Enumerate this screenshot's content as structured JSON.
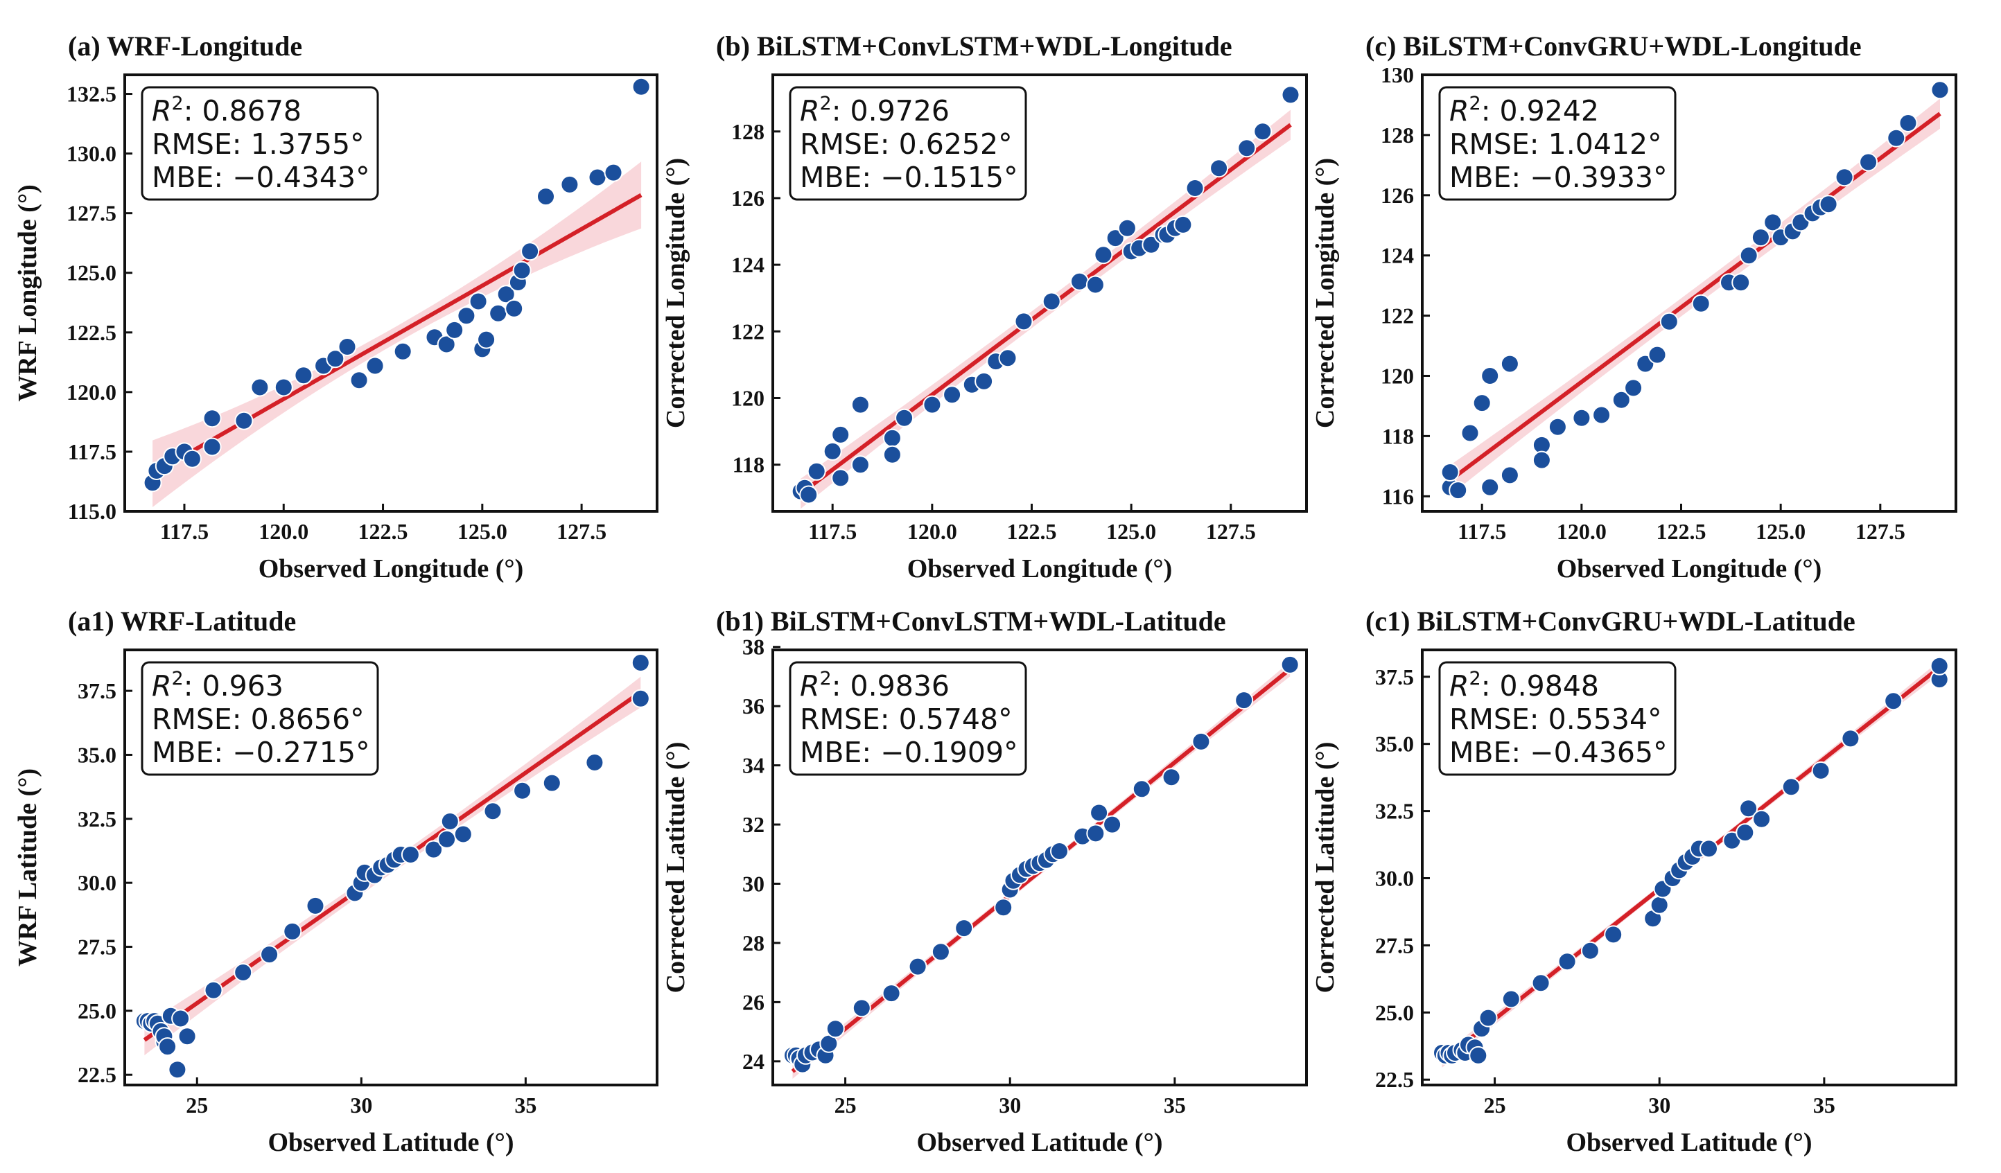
{
  "figure": {
    "colors": {
      "point": "#1b4f9c",
      "point_edge": "#ffffff",
      "fit_line": "#d42027",
      "ci_band": "#f4b6bd",
      "axes": "#111111"
    }
  },
  "chart_data": [
    {
      "id": "a",
      "type": "scatter",
      "title": "(a) WRF-Longitude",
      "xlabel": "Observed Longitude (°)",
      "ylabel": "WRF Longitude (°)",
      "xlim": [
        116.0,
        129.4
      ],
      "ylim": [
        115.0,
        133.3
      ],
      "xticks": [
        117.5,
        120.0,
        122.5,
        125.0,
        127.5
      ],
      "xtick_labels": [
        "117.5",
        "120.0",
        "122.5",
        "125.0",
        "127.5"
      ],
      "yticks": [
        115.0,
        117.5,
        120.0,
        122.5,
        125.0,
        127.5,
        130.0,
        132.5
      ],
      "ytick_labels": [
        "115.0",
        "117.5",
        "120.0",
        "122.5",
        "125.0",
        "127.5",
        "130.0",
        "132.5"
      ],
      "stats": {
        "r2_label": ": 0.8678",
        "rmse": "RMSE: 1.3755°",
        "mbe": "MBE: −0.4343°"
      },
      "fit": {
        "slope": 0.95,
        "intercept": 5.71,
        "ci_halfwidth": [
          0.35,
          1.4
        ]
      },
      "points": [
        [
          116.7,
          116.2
        ],
        [
          116.8,
          116.7
        ],
        [
          117.0,
          116.9
        ],
        [
          117.2,
          117.3
        ],
        [
          117.5,
          117.5
        ],
        [
          117.7,
          117.2
        ],
        [
          118.2,
          118.9
        ],
        [
          118.2,
          117.7
        ],
        [
          119.0,
          118.8
        ],
        [
          119.4,
          120.2
        ],
        [
          120.0,
          120.2
        ],
        [
          120.5,
          120.7
        ],
        [
          121.0,
          121.1
        ],
        [
          121.3,
          121.4
        ],
        [
          121.6,
          121.9
        ],
        [
          121.9,
          120.5
        ],
        [
          122.3,
          121.1
        ],
        [
          123.0,
          121.7
        ],
        [
          123.8,
          122.3
        ],
        [
          124.1,
          122.0
        ],
        [
          124.3,
          122.6
        ],
        [
          124.6,
          123.2
        ],
        [
          124.9,
          123.8
        ],
        [
          125.0,
          121.8
        ],
        [
          125.1,
          122.2
        ],
        [
          125.4,
          123.3
        ],
        [
          125.6,
          124.1
        ],
        [
          125.8,
          123.5
        ],
        [
          125.9,
          124.6
        ],
        [
          126.0,
          125.1
        ],
        [
          126.2,
          125.9
        ],
        [
          126.6,
          128.2
        ],
        [
          127.2,
          128.7
        ],
        [
          127.9,
          129.0
        ],
        [
          128.3,
          129.2
        ],
        [
          129.0,
          132.8
        ]
      ]
    },
    {
      "id": "b",
      "type": "scatter",
      "title": "(b) BiLSTM+ConvLSTM+WDL-Longitude",
      "xlabel": "Observed Longitude (°)",
      "ylabel": "Corrected Longitude (°)",
      "xlim": [
        116.0,
        129.4
      ],
      "ylim": [
        116.6,
        129.7
      ],
      "xticks": [
        117.5,
        120.0,
        122.5,
        125.0,
        127.5
      ],
      "xtick_labels": [
        "117.5",
        "120.0",
        "122.5",
        "125.0",
        "127.5"
      ],
      "yticks": [
        118,
        120,
        122,
        124,
        126,
        128
      ],
      "ytick_labels": [
        "118",
        "120",
        "122",
        "124",
        "126",
        "128"
      ],
      "stats": {
        "r2_label": ": 0.9726",
        "rmse": "RMSE: 0.6252°",
        "mbe": "MBE: −0.1515°"
      },
      "fit": {
        "slope": 0.9,
        "intercept": 12.1,
        "ci_halfwidth": [
          0.25,
          0.45
        ]
      },
      "points": [
        [
          116.7,
          117.2
        ],
        [
          116.8,
          117.3
        ],
        [
          116.9,
          117.1
        ],
        [
          117.1,
          117.8
        ],
        [
          117.5,
          118.4
        ],
        [
          117.7,
          118.9
        ],
        [
          117.7,
          117.6
        ],
        [
          118.2,
          119.8
        ],
        [
          118.2,
          118.0
        ],
        [
          119.0,
          118.8
        ],
        [
          119.0,
          118.3
        ],
        [
          119.3,
          119.4
        ],
        [
          120.0,
          119.8
        ],
        [
          120.5,
          120.1
        ],
        [
          121.0,
          120.4
        ],
        [
          121.3,
          120.5
        ],
        [
          121.6,
          121.1
        ],
        [
          121.9,
          121.2
        ],
        [
          122.3,
          122.3
        ],
        [
          123.0,
          122.9
        ],
        [
          123.7,
          123.5
        ],
        [
          124.1,
          123.4
        ],
        [
          124.3,
          124.3
        ],
        [
          124.6,
          124.8
        ],
        [
          124.9,
          125.1
        ],
        [
          125.0,
          124.4
        ],
        [
          125.2,
          124.5
        ],
        [
          125.5,
          124.6
        ],
        [
          125.8,
          124.9
        ],
        [
          125.9,
          124.9
        ],
        [
          126.1,
          125.1
        ],
        [
          126.3,
          125.2
        ],
        [
          126.6,
          126.3
        ],
        [
          127.2,
          126.9
        ],
        [
          127.9,
          127.5
        ],
        [
          128.3,
          128.0
        ],
        [
          129.0,
          129.1
        ]
      ]
    },
    {
      "id": "c",
      "type": "scatter",
      "title": "(c) BiLSTM+ConvGRU+WDL-Longitude",
      "xlabel": "Observed Longitude (°)",
      "ylabel": "Corrected Longitude (°)",
      "xlim": [
        116.0,
        129.4
      ],
      "ylim": [
        115.5,
        130.0
      ],
      "xticks": [
        117.5,
        120.0,
        122.5,
        125.0,
        127.5
      ],
      "xtick_labels": [
        "117.5",
        "120.0",
        "122.5",
        "125.0",
        "127.5"
      ],
      "yticks": [
        116,
        118,
        120,
        122,
        124,
        126,
        128,
        130
      ],
      "ytick_labels": [
        "116",
        "118",
        "120",
        "122",
        "124",
        "126",
        "128",
        "130"
      ],
      "stats": {
        "r2_label": ": 0.9242",
        "rmse": "RMSE: 1.0412°",
        "mbe": "MBE: −0.3933°"
      },
      "fit": {
        "slope": 0.99,
        "intercept": 1.0,
        "ci_halfwidth": [
          0.3,
          0.5
        ]
      },
      "points": [
        [
          116.7,
          116.3
        ],
        [
          116.7,
          116.8
        ],
        [
          116.9,
          116.2
        ],
        [
          117.2,
          118.1
        ],
        [
          117.5,
          119.1
        ],
        [
          117.7,
          120.0
        ],
        [
          117.7,
          116.3
        ],
        [
          118.2,
          120.4
        ],
        [
          118.2,
          116.7
        ],
        [
          119.0,
          117.7
        ],
        [
          119.0,
          117.2
        ],
        [
          119.4,
          118.3
        ],
        [
          120.0,
          118.6
        ],
        [
          120.5,
          118.7
        ],
        [
          121.0,
          119.2
        ],
        [
          121.3,
          119.6
        ],
        [
          121.6,
          120.4
        ],
        [
          121.9,
          120.7
        ],
        [
          122.2,
          121.8
        ],
        [
          123.0,
          122.4
        ],
        [
          123.7,
          123.1
        ],
        [
          124.0,
          123.1
        ],
        [
          124.2,
          124.0
        ],
        [
          124.5,
          124.6
        ],
        [
          124.8,
          125.1
        ],
        [
          125.0,
          124.6
        ],
        [
          125.3,
          124.8
        ],
        [
          125.5,
          125.1
        ],
        [
          125.8,
          125.4
        ],
        [
          126.0,
          125.6
        ],
        [
          126.2,
          125.7
        ],
        [
          126.6,
          126.6
        ],
        [
          127.2,
          127.1
        ],
        [
          127.9,
          127.9
        ],
        [
          128.2,
          128.4
        ],
        [
          129.0,
          129.5
        ]
      ]
    },
    {
      "id": "a1",
      "type": "scatter",
      "title": "(a1) WRF-Latitude",
      "xlabel": "Observed Latitude (°)",
      "ylabel": "WRF Latitude (°)",
      "xlim": [
        22.8,
        39.0
      ],
      "ylim": [
        22.1,
        39.1
      ],
      "xticks": [
        25,
        30,
        35
      ],
      "xtick_labels": [
        "25",
        "30",
        "35"
      ],
      "yticks": [
        22.5,
        25.0,
        27.5,
        30.0,
        32.5,
        35.0,
        37.5
      ],
      "ytick_labels": [
        "22.5",
        "25.0",
        "27.5",
        "30.0",
        "32.5",
        "35.0",
        "37.5"
      ],
      "stats": {
        "r2_label": ": 0.963",
        "rmse": "RMSE: 0.8656°",
        "mbe": "MBE: −0.2715°"
      },
      "fit": {
        "slope": 0.9,
        "intercept": 2.8,
        "ci_halfwidth": [
          0.25,
          0.6
        ]
      },
      "points": [
        [
          23.4,
          24.6
        ],
        [
          23.5,
          24.6
        ],
        [
          23.6,
          24.5
        ],
        [
          23.7,
          24.6
        ],
        [
          23.8,
          24.5
        ],
        [
          23.9,
          24.2
        ],
        [
          24.0,
          23.8
        ],
        [
          24.0,
          24.0
        ],
        [
          24.1,
          23.6
        ],
        [
          24.2,
          24.8
        ],
        [
          24.4,
          22.7
        ],
        [
          24.5,
          24.7
        ],
        [
          24.7,
          24.0
        ],
        [
          25.5,
          25.8
        ],
        [
          26.4,
          26.5
        ],
        [
          27.2,
          27.2
        ],
        [
          27.9,
          28.1
        ],
        [
          28.6,
          29.1
        ],
        [
          29.8,
          29.6
        ],
        [
          30.0,
          30.0
        ],
        [
          30.1,
          30.4
        ],
        [
          30.4,
          30.3
        ],
        [
          30.6,
          30.6
        ],
        [
          30.8,
          30.7
        ],
        [
          31.0,
          30.9
        ],
        [
          31.2,
          31.1
        ],
        [
          31.5,
          31.1
        ],
        [
          32.2,
          31.3
        ],
        [
          32.6,
          31.7
        ],
        [
          32.7,
          32.4
        ],
        [
          33.1,
          31.9
        ],
        [
          34.0,
          32.8
        ],
        [
          34.9,
          33.6
        ],
        [
          35.8,
          33.9
        ],
        [
          37.1,
          34.7
        ],
        [
          38.5,
          37.2
        ],
        [
          38.5,
          38.6
        ]
      ]
    },
    {
      "id": "b1",
      "type": "scatter",
      "title": "(b1) BiLSTM+ConvLSTM+WDL-Latitude",
      "xlabel": "Observed Latitude (°)",
      "ylabel": "Corrected Latitude (°)",
      "xlim": [
        22.8,
        39.0
      ],
      "ylim": [
        23.2,
        37.9
      ],
      "xticks": [
        25,
        30,
        35
      ],
      "xtick_labels": [
        "25",
        "30",
        "35"
      ],
      "yticks": [
        24,
        26,
        28,
        30,
        32,
        34,
        36,
        38
      ],
      "ytick_labels": [
        "24",
        "26",
        "28",
        "30",
        "32",
        "34",
        "36",
        "38"
      ],
      "stats": {
        "r2_label": ": 0.9836",
        "rmse": "RMSE: 0.5748°",
        "mbe": "MBE: −0.1909°"
      },
      "fit": {
        "slope": 0.9,
        "intercept": 2.6,
        "ci_halfwidth": [
          0.12,
          0.25
        ]
      },
      "points": [
        [
          23.4,
          24.2
        ],
        [
          23.5,
          24.2
        ],
        [
          23.6,
          24.1
        ],
        [
          23.7,
          23.9
        ],
        [
          23.8,
          24.2
        ],
        [
          24.0,
          24.3
        ],
        [
          24.2,
          24.4
        ],
        [
          24.4,
          24.2
        ],
        [
          24.5,
          24.6
        ],
        [
          24.7,
          25.1
        ],
        [
          25.5,
          25.8
        ],
        [
          26.4,
          26.3
        ],
        [
          27.2,
          27.2
        ],
        [
          27.9,
          27.7
        ],
        [
          28.6,
          28.5
        ],
        [
          29.8,
          29.2
        ],
        [
          30.0,
          29.8
        ],
        [
          30.1,
          30.1
        ],
        [
          30.3,
          30.3
        ],
        [
          30.5,
          30.5
        ],
        [
          30.7,
          30.6
        ],
        [
          30.9,
          30.7
        ],
        [
          31.1,
          30.8
        ],
        [
          31.3,
          31.0
        ],
        [
          31.5,
          31.1
        ],
        [
          32.2,
          31.6
        ],
        [
          32.6,
          31.7
        ],
        [
          32.7,
          32.4
        ],
        [
          33.1,
          32.0
        ],
        [
          34.0,
          33.2
        ],
        [
          34.9,
          33.6
        ],
        [
          35.8,
          34.8
        ],
        [
          37.1,
          36.2
        ],
        [
          38.5,
          37.4
        ]
      ]
    },
    {
      "id": "c1",
      "type": "scatter",
      "title": "(c1) BiLSTM+ConvGRU+WDL-Latitude",
      "xlabel": "Observed Latitude (°)",
      "ylabel": "Corrected Latitude (°)",
      "xlim": [
        22.8,
        39.0
      ],
      "ylim": [
        22.3,
        38.5
      ],
      "xticks": [
        25,
        30,
        35
      ],
      "xtick_labels": [
        "25",
        "30",
        "35"
      ],
      "yticks": [
        22.5,
        25.0,
        27.5,
        30.0,
        32.5,
        35.0,
        37.5
      ],
      "ytick_labels": [
        "22.5",
        "25.0",
        "27.5",
        "30.0",
        "32.5",
        "35.0",
        "37.5"
      ],
      "stats": {
        "r2_label": ": 0.9848",
        "rmse": "RMSE: 0.5534°",
        "mbe": "MBE: −0.4365°"
      },
      "fit": {
        "slope": 0.97,
        "intercept": 0.5,
        "ci_halfwidth": [
          0.12,
          0.25
        ]
      },
      "points": [
        [
          23.4,
          23.5
        ],
        [
          23.5,
          23.4
        ],
        [
          23.6,
          23.5
        ],
        [
          23.7,
          23.4
        ],
        [
          23.8,
          23.5
        ],
        [
          24.0,
          23.6
        ],
        [
          24.1,
          23.5
        ],
        [
          24.2,
          23.8
        ],
        [
          24.4,
          23.7
        ],
        [
          24.5,
          23.4
        ],
        [
          24.6,
          24.4
        ],
        [
          24.8,
          24.8
        ],
        [
          25.5,
          25.5
        ],
        [
          26.4,
          26.1
        ],
        [
          27.2,
          26.9
        ],
        [
          27.9,
          27.3
        ],
        [
          28.6,
          27.9
        ],
        [
          29.8,
          28.5
        ],
        [
          30.0,
          29.0
        ],
        [
          30.1,
          29.6
        ],
        [
          30.4,
          30.0
        ],
        [
          30.6,
          30.3
        ],
        [
          30.8,
          30.6
        ],
        [
          31.0,
          30.8
        ],
        [
          31.2,
          31.1
        ],
        [
          31.5,
          31.1
        ],
        [
          32.2,
          31.4
        ],
        [
          32.6,
          31.7
        ],
        [
          32.7,
          32.6
        ],
        [
          33.1,
          32.2
        ],
        [
          34.0,
          33.4
        ],
        [
          34.9,
          34.0
        ],
        [
          35.8,
          35.2
        ],
        [
          37.1,
          36.6
        ],
        [
          38.5,
          37.4
        ],
        [
          38.5,
          37.9
        ]
      ]
    }
  ]
}
